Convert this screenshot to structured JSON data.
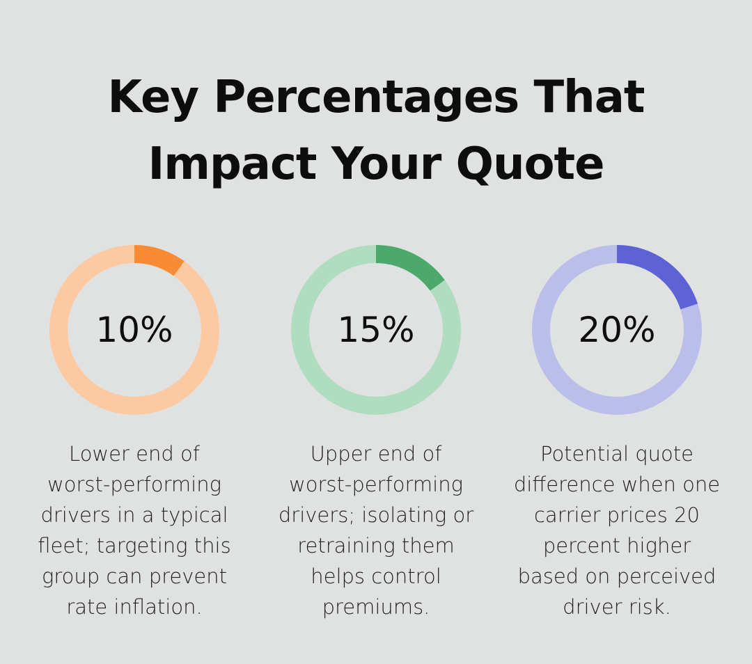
{
  "title": {
    "line1": "Key Percentages That",
    "line2": "Impact Your Quote"
  },
  "chart_data": {
    "type": "donut",
    "items": [
      {
        "value": 10,
        "label": "10%",
        "description_lines": [
          "Lower end of",
          "worst-performing",
          "drivers in a typical",
          "fleet; targeting this",
          "group can prevent",
          "rate inflation."
        ],
        "color": "#fa8b35",
        "track_color": "#fdc9a1"
      },
      {
        "value": 15,
        "label": "15%",
        "description_lines": [
          "Upper end of",
          "worst-performing",
          "drivers; isolating or",
          "retraining them",
          "helps control",
          "premiums."
        ],
        "color": "#4ca86b",
        "track_color": "#b0dcbf"
      },
      {
        "value": 20,
        "label": "20%",
        "description_lines": [
          "Potential quote",
          "difference when one",
          "carrier prices 20",
          "percent higher",
          "based on perceived",
          "driver risk."
        ],
        "color": "#5d62d4",
        "track_color": "#bbbee9"
      }
    ]
  }
}
